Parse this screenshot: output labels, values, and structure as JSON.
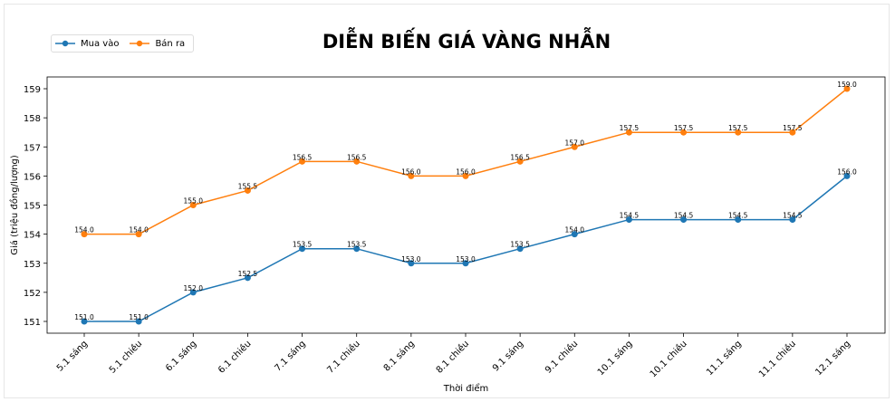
{
  "chart_data": {
    "type": "line",
    "title": "DIỄN BIẾN GIÁ VÀNG NHẪN",
    "xlabel": "Thời điểm",
    "ylabel": "Giá (triệu đồng/lượng)",
    "categories": [
      "5.1 sáng",
      "5.1 chiều",
      "6.1 sáng",
      "6.1 chiều",
      "7.1 sáng",
      "7.1 chiều",
      "8.1 sáng",
      "8.1 chiều",
      "9.1 sáng",
      "9.1 chiều",
      "10.1 sáng",
      "10.1 chiều",
      "11.1 sáng",
      "11.1 chiều",
      "12.1 sáng"
    ],
    "series": [
      {
        "name": "Mua vào",
        "color": "#1f77b4",
        "values": [
          151.0,
          151.0,
          152.0,
          152.5,
          153.5,
          153.5,
          153.0,
          153.0,
          153.5,
          154.0,
          154.5,
          154.5,
          154.5,
          154.5,
          156.0
        ]
      },
      {
        "name": "Bán ra",
        "color": "#ff7f0e",
        "values": [
          154.0,
          154.0,
          155.0,
          155.5,
          156.5,
          156.5,
          156.0,
          156.0,
          156.5,
          157.0,
          157.5,
          157.5,
          157.5,
          157.5,
          159.0
        ]
      }
    ],
    "yticks": [
      151,
      152,
      153,
      154,
      155,
      156,
      157,
      158,
      159
    ],
    "ylim": [
      150.6,
      159.4
    ],
    "grid": false,
    "legend_position": "top-left",
    "marker": "circle",
    "data_labels": true
  }
}
